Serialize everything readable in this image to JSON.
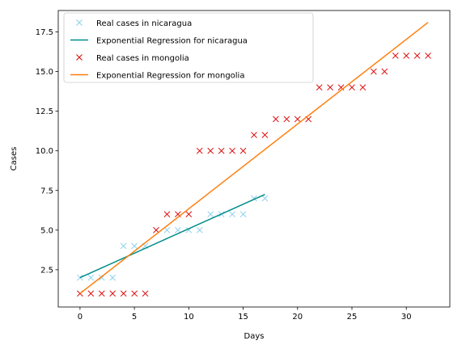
{
  "chart_data": {
    "type": "scatter",
    "title": "",
    "xlabel": "Days",
    "ylabel": "Cases",
    "xlim": [
      -2,
      34
    ],
    "ylim": [
      0.15,
      18.85
    ],
    "xticks": [
      0,
      5,
      10,
      15,
      20,
      25,
      30
    ],
    "yticks": [
      2.5,
      5.0,
      7.5,
      10.0,
      12.5,
      15.0,
      17.5
    ],
    "ytick_labels": [
      "2.5",
      "5.0",
      "7.5",
      "10.0",
      "12.5",
      "15.0",
      "17.5"
    ],
    "grid": false,
    "legend_position": "top-left",
    "series": [
      {
        "name": "Real cases in nicaragua",
        "kind": "markers",
        "marker": "x",
        "color": "#87ceeb",
        "x": [
          0,
          1,
          2,
          3,
          4,
          5,
          6,
          7,
          8,
          9,
          10,
          11,
          12,
          13,
          14,
          15,
          16,
          17
        ],
        "y": [
          2,
          2,
          2,
          2,
          4,
          4,
          4,
          5,
          5,
          5,
          5,
          5,
          6,
          6,
          6,
          6,
          7,
          7
        ]
      },
      {
        "name": "Exponential Regression for nicaragua",
        "kind": "line",
        "color": "#008b8b",
        "x": [
          0,
          17
        ],
        "y": [
          2.0,
          7.25
        ]
      },
      {
        "name": "Real cases in mongolia",
        "kind": "markers",
        "marker": "x",
        "color": "#dd0000",
        "x": [
          0,
          1,
          2,
          3,
          4,
          5,
          6,
          7,
          8,
          9,
          10,
          11,
          12,
          13,
          14,
          15,
          16,
          17,
          18,
          19,
          20,
          21,
          22,
          23,
          24,
          25,
          26,
          27,
          28,
          29,
          30,
          31,
          32
        ],
        "y": [
          1,
          1,
          1,
          1,
          1,
          1,
          1,
          5,
          6,
          6,
          6,
          10,
          10,
          10,
          10,
          10,
          11,
          11,
          12,
          12,
          12,
          12,
          14,
          14,
          14,
          14,
          14,
          15,
          15,
          16,
          16,
          16,
          16
        ]
      },
      {
        "name": "Exponential Regression for mongolia",
        "kind": "line",
        "color": "#ff7f0e",
        "x": [
          0,
          32
        ],
        "y": [
          1.0,
          18.1
        ]
      }
    ]
  }
}
